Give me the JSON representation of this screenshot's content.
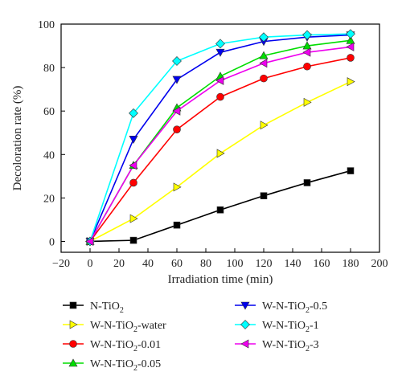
{
  "chart_data": {
    "type": "line",
    "xlabel": "Irradiation time (min)",
    "ylabel": "Decoloration rate (%)",
    "xlim": [
      -20,
      200
    ],
    "ylim": [
      -5,
      100
    ],
    "xticks": [
      -20,
      0,
      20,
      40,
      60,
      80,
      100,
      120,
      140,
      160,
      180,
      200
    ],
    "yticks": [
      0,
      20,
      40,
      60,
      80,
      100
    ],
    "x": [
      0,
      30,
      60,
      90,
      120,
      150,
      180
    ],
    "legend_position": "bottom",
    "series": [
      {
        "name": "N-TiO",
        "sub": "2",
        "suffix": "",
        "color": "#000000",
        "marker": "square",
        "values": [
          0,
          0.5,
          7.5,
          14.5,
          21,
          27,
          32.5
        ]
      },
      {
        "name": "W-N-TiO",
        "sub": "2",
        "suffix": "-water",
        "color": "#ffff00",
        "marker": "triangle-right",
        "values": [
          0,
          10.5,
          25,
          40.5,
          53.5,
          64,
          73.5
        ]
      },
      {
        "name": "W-N-TiO",
        "sub": "2",
        "suffix": "-0.01",
        "color": "#ff0000",
        "marker": "circle",
        "values": [
          0,
          27,
          51.5,
          66.5,
          75,
          80.5,
          84.5
        ]
      },
      {
        "name": "W-N-TiO",
        "sub": "2",
        "suffix": "-0.05",
        "color": "#00dd00",
        "marker": "triangle-up",
        "values": [
          0,
          35,
          61.5,
          76,
          85.5,
          90,
          92.5
        ]
      },
      {
        "name": "W-N-TiO",
        "sub": "2",
        "suffix": "-0.5",
        "color": "#0000ee",
        "marker": "triangle-down",
        "values": [
          0,
          47,
          74.5,
          87,
          92,
          94,
          95
        ]
      },
      {
        "name": "W-N-TiO",
        "sub": "2",
        "suffix": "-1",
        "color": "#00ffff",
        "marker": "diamond",
        "values": [
          0,
          59,
          83,
          91,
          94,
          95,
          95.5
        ]
      },
      {
        "name": "W-N-TiO",
        "sub": "2",
        "suffix": "-3",
        "color": "#ee00ee",
        "marker": "triangle-left",
        "values": [
          0,
          35,
          60,
          74,
          82,
          87,
          89.5
        ]
      }
    ]
  }
}
